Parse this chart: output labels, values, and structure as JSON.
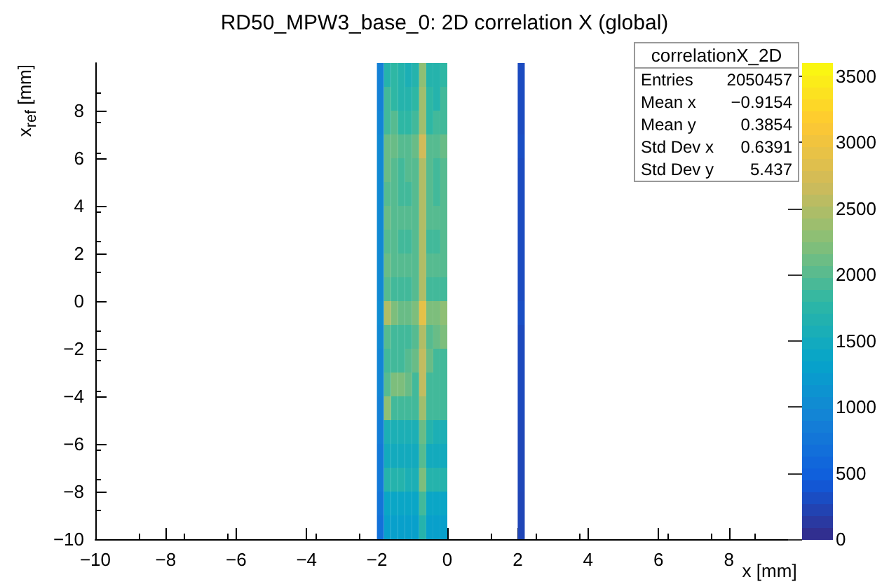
{
  "chart_data": {
    "type": "heatmap",
    "title": "RD50_MPW3_base_0: 2D correlation X (global)",
    "xlabel": "x [mm]",
    "ylabel": "x$_{ref}$ [mm]",
    "x": [
      -1.9,
      -1.7,
      -1.5,
      -1.3,
      -1.1,
      -0.9,
      -0.7,
      -0.5,
      -0.3,
      -0.1,
      0.1,
      0.3,
      0.5,
      0.7,
      0.9,
      1.1,
      1.3,
      1.5,
      1.7,
      1.9,
      2.1
    ],
    "cells": [
      [
        900,
        1700,
        1800,
        1700,
        1600,
        1700,
        2300,
        1700,
        1700,
        1800,
        null,
        null,
        null,
        null,
        null,
        null,
        null,
        null,
        null,
        null,
        300
      ],
      [
        900,
        1900,
        1800,
        1700,
        1700,
        1800,
        2400,
        1800,
        1700,
        1900,
        null,
        null,
        null,
        null,
        null,
        null,
        null,
        null,
        null,
        null,
        300
      ],
      [
        950,
        1900,
        2000,
        1800,
        1800,
        1900,
        2400,
        1800,
        1900,
        1900,
        null,
        null,
        null,
        null,
        null,
        null,
        null,
        null,
        null,
        null,
        300
      ],
      [
        1000,
        2100,
        2100,
        2000,
        2000,
        2100,
        2700,
        2000,
        2000,
        2100,
        null,
        null,
        null,
        null,
        null,
        null,
        null,
        null,
        null,
        null,
        320
      ],
      [
        1000,
        2100,
        2000,
        1900,
        2000,
        2000,
        2500,
        2000,
        1900,
        2000,
        null,
        null,
        null,
        null,
        null,
        null,
        null,
        null,
        null,
        null,
        300
      ],
      [
        1000,
        2000,
        2000,
        1900,
        1900,
        2000,
        2500,
        2000,
        1900,
        2000,
        null,
        null,
        null,
        null,
        null,
        null,
        null,
        null,
        null,
        null,
        300
      ],
      [
        1000,
        2100,
        2000,
        2000,
        2000,
        2000,
        2500,
        2000,
        2000,
        2000,
        null,
        null,
        null,
        null,
        null,
        null,
        null,
        null,
        null,
        null,
        300
      ],
      [
        1000,
        2000,
        2000,
        1900,
        1900,
        2000,
        2500,
        1900,
        1900,
        2000,
        null,
        null,
        null,
        null,
        null,
        null,
        null,
        null,
        null,
        null,
        300
      ],
      [
        1000,
        2100,
        2000,
        2000,
        2000,
        2000,
        2500,
        2000,
        2000,
        2000,
        null,
        null,
        null,
        null,
        null,
        null,
        null,
        null,
        null,
        null,
        300
      ],
      [
        1000,
        2000,
        1900,
        1900,
        1900,
        2000,
        2500,
        1900,
        1900,
        1900,
        null,
        null,
        null,
        null,
        null,
        null,
        null,
        null,
        null,
        null,
        300
      ],
      [
        1050,
        2500,
        2200,
        2100,
        2100,
        2200,
        2900,
        2200,
        2200,
        2300,
        null,
        null,
        null,
        null,
        null,
        null,
        null,
        null,
        null,
        null,
        320
      ],
      [
        1000,
        2000,
        1900,
        1900,
        1900,
        2000,
        2500,
        2000,
        2100,
        2200,
        null,
        null,
        null,
        null,
        null,
        null,
        null,
        null,
        null,
        null,
        280
      ],
      [
        950,
        1900,
        1900,
        1900,
        2000,
        2100,
        2600,
        2100,
        1900,
        1900,
        null,
        null,
        null,
        null,
        null,
        null,
        null,
        null,
        null,
        null,
        280
      ],
      [
        950,
        2000,
        2200,
        2200,
        2100,
        1900,
        2600,
        1900,
        1900,
        1900,
        null,
        null,
        null,
        null,
        null,
        null,
        null,
        null,
        null,
        null,
        280
      ],
      [
        900,
        2300,
        1900,
        1900,
        1900,
        1900,
        2400,
        1900,
        1900,
        1900,
        null,
        null,
        null,
        null,
        null,
        null,
        null,
        null,
        null,
        null,
        280
      ],
      [
        850,
        1600,
        1600,
        1600,
        1600,
        1600,
        2100,
        1700,
        1600,
        1600,
        null,
        null,
        null,
        null,
        null,
        null,
        null,
        null,
        null,
        null,
        260
      ],
      [
        800,
        1500,
        1500,
        1500,
        1500,
        1500,
        2000,
        1500,
        1500,
        1500,
        null,
        null,
        null,
        null,
        null,
        null,
        null,
        null,
        null,
        null,
        260
      ],
      [
        800,
        1700,
        1700,
        1700,
        1600,
        1600,
        2200,
        1700,
        1700,
        1700,
        null,
        null,
        null,
        null,
        null,
        null,
        null,
        null,
        null,
        null,
        260
      ],
      [
        750,
        1400,
        1400,
        1400,
        1400,
        1400,
        1900,
        1400,
        1400,
        1400,
        null,
        null,
        null,
        null,
        null,
        null,
        null,
        null,
        null,
        null,
        250
      ],
      [
        700,
        1300,
        1300,
        1300,
        1300,
        1300,
        1700,
        1300,
        1300,
        1300,
        null,
        null,
        null,
        null,
        null,
        null,
        null,
        null,
        null,
        null,
        250
      ]
    ],
    "xlim": [
      -10,
      10
    ],
    "xticks": [
      -10,
      -8,
      -6,
      -4,
      -2,
      0,
      2,
      4,
      6,
      8
    ],
    "ylim": [
      -10,
      10
    ],
    "yticks": [
      -10,
      -8,
      -6,
      -4,
      -2,
      0,
      2,
      4,
      6,
      8
    ],
    "clim": [
      0,
      3600
    ],
    "cticks": [
      0,
      500,
      1000,
      1500,
      2000,
      2500,
      3000,
      3500
    ],
    "grid": false,
    "annotations": [
      "correlationX_2D",
      "Entries",
      "2050457",
      "Mean x",
      "−0.9154",
      "Mean y",
      "0.3854",
      "Std Dev x",
      "0.6391",
      "Std Dev y",
      "5.437"
    ]
  }
}
